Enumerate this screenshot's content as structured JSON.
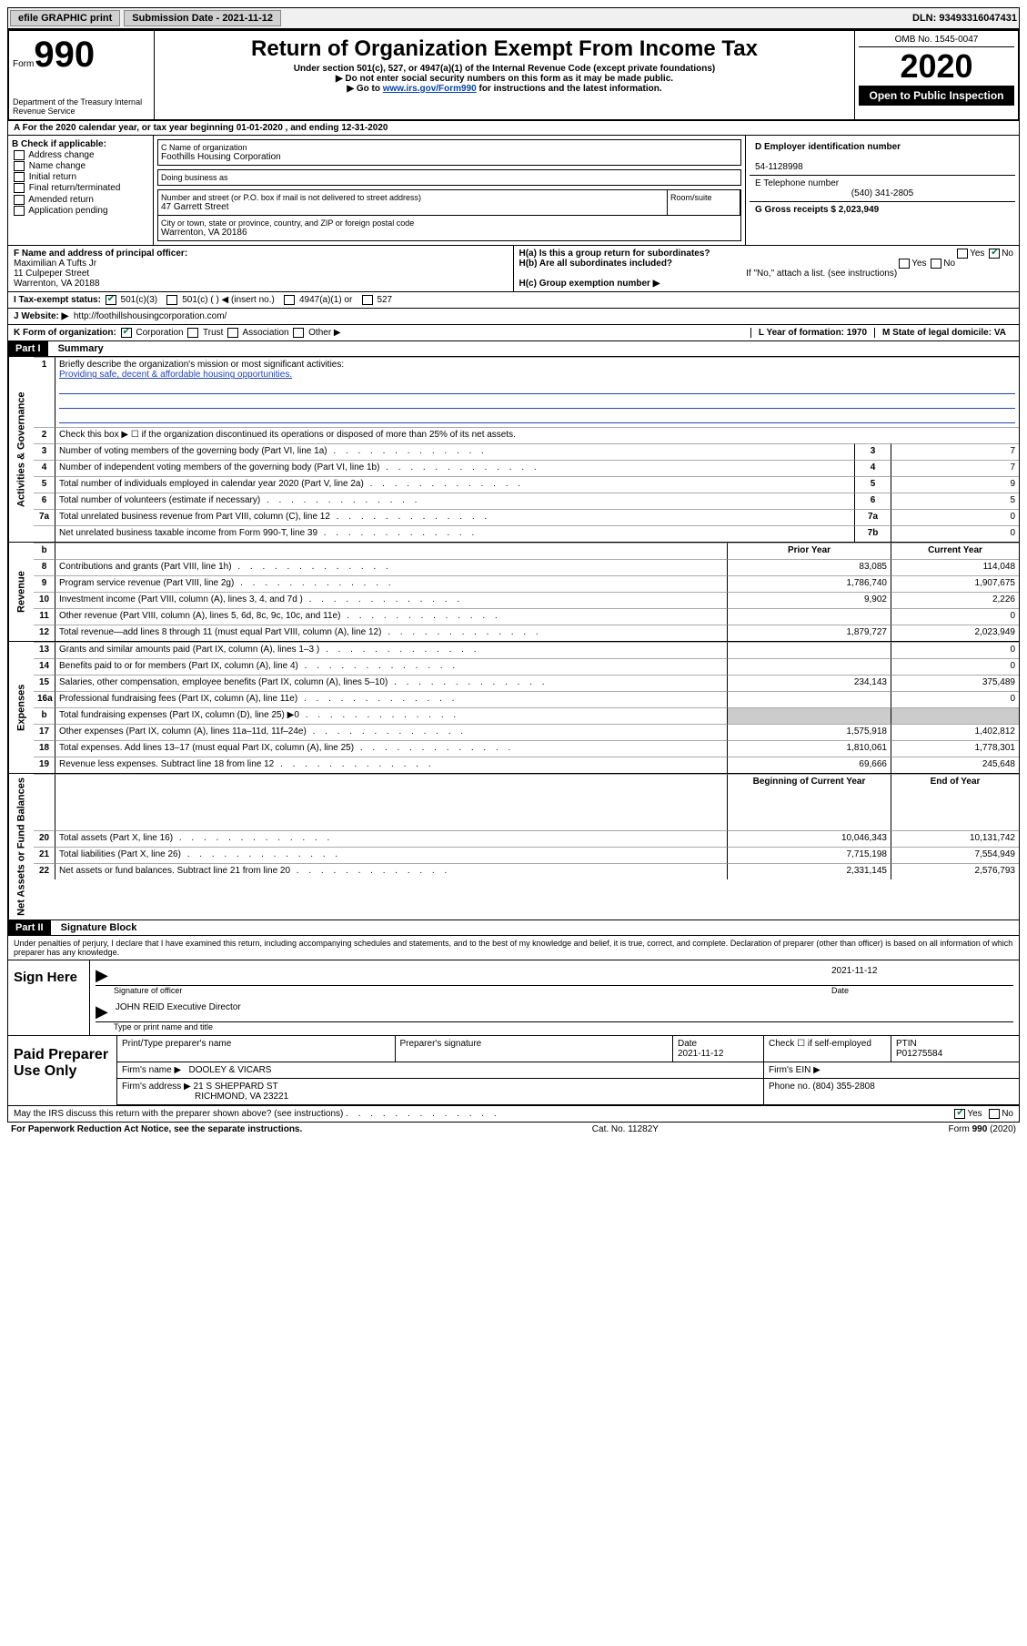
{
  "topbar": {
    "efile_label": "efile GRAPHIC print",
    "submission_label": "Submission Date - 2021-11-12",
    "dln_label": "DLN: 93493316047431"
  },
  "header": {
    "form_word": "Form",
    "form_number": "990",
    "dept": "Department of the Treasury\nInternal Revenue Service",
    "title": "Return of Organization Exempt From Income Tax",
    "subtitle1": "Under section 501(c), 527, or 4947(a)(1) of the Internal Revenue Code (except private foundations)",
    "subtitle2": "▶ Do not enter social security numbers on this form as it may be made public.",
    "subtitle3_pre": "▶ Go to ",
    "subtitle3_link": "www.irs.gov/Form990",
    "subtitle3_post": " for instructions and the latest information.",
    "omb": "OMB No. 1545-0047",
    "year": "2020",
    "inspection": "Open to Public Inspection"
  },
  "line_a": "A   For the 2020 calendar year, or tax year beginning 01-01-2020    , and ending 12-31-2020",
  "box_b": {
    "label": "B Check if applicable:",
    "items": [
      "Address change",
      "Name change",
      "Initial return",
      "Final return/terminated",
      "Amended return",
      "Application pending"
    ]
  },
  "box_c": {
    "name_label": "C Name of organization",
    "name": "Foothills Housing Corporation",
    "dba_label": "Doing business as",
    "street_label": "Number and street (or P.O. box if mail is not delivered to street address)",
    "street": "47 Garrett Street",
    "room_label": "Room/suite",
    "city_label": "City or town, state or province, country, and ZIP or foreign postal code",
    "city": "Warrenton, VA  20186"
  },
  "box_d": {
    "ein_label": "D Employer identification number",
    "ein": "54-1128998",
    "tel_label": "E Telephone number",
    "tel": "(540) 341-2805",
    "gross_label": "G Gross receipts $ 2,023,949"
  },
  "box_f": {
    "label": "F  Name and address of principal officer:",
    "name": "Maximilian A Tufts Jr",
    "addr1": "11 Culpeper Street",
    "addr2": "Warrenton, VA  20188"
  },
  "box_h": {
    "a_label": "H(a)  Is this a group return for subordinates?",
    "a_yes": "Yes",
    "a_no": "No",
    "b_label": "H(b)  Are all subordinates included?",
    "b_yes": "Yes",
    "b_no": "No",
    "b_note": "If \"No,\" attach a list. (see instructions)",
    "c_label": "H(c)  Group exemption number ▶"
  },
  "line_i": {
    "label": "I   Tax-exempt status:",
    "opts": [
      "501(c)(3)",
      "501(c) (   ) ◀ (insert no.)",
      "4947(a)(1) or",
      "527"
    ]
  },
  "line_j": {
    "label": "J   Website: ▶",
    "url": "http://foothillshousingcorporation.com/"
  },
  "line_k": {
    "label": "K Form of organization:",
    "opts": [
      "Corporation",
      "Trust",
      "Association",
      "Other ▶"
    ]
  },
  "line_l": {
    "label": "L Year of formation: 1970"
  },
  "line_m": {
    "label": "M State of legal domicile: VA"
  },
  "parts": {
    "p1_num": "Part I",
    "p1_title": "Summary",
    "p2_num": "Part II",
    "p2_title": "Signature Block"
  },
  "summary": {
    "q1_label": "Briefly describe the organization's mission or most significant activities:",
    "q1_text": "Providing safe, decent & affordable housing opportunities.",
    "q2_label": "Check this box ▶ ☐  if the organization discontinued its operations or disposed of more than 25% of its net assets.",
    "col_prior": "Prior Year",
    "col_current": "Current Year",
    "col_boy": "Beginning of Current Year",
    "col_eoy": "End of Year",
    "rows_gov": [
      {
        "n": "3",
        "t": "Number of voting members of the governing body (Part VI, line 1a)",
        "box": "3",
        "v": "7"
      },
      {
        "n": "4",
        "t": "Number of independent voting members of the governing body (Part VI, line 1b)",
        "box": "4",
        "v": "7"
      },
      {
        "n": "5",
        "t": "Total number of individuals employed in calendar year 2020 (Part V, line 2a)",
        "box": "5",
        "v": "9"
      },
      {
        "n": "6",
        "t": "Total number of volunteers (estimate if necessary)",
        "box": "6",
        "v": "5"
      },
      {
        "n": "7a",
        "t": "Total unrelated business revenue from Part VIII, column (C), line 12",
        "box": "7a",
        "v": "0"
      },
      {
        "n": "",
        "t": "Net unrelated business taxable income from Form 990-T, line 39",
        "box": "7b",
        "v": "0"
      }
    ],
    "rows_rev": [
      {
        "n": "8",
        "t": "Contributions and grants (Part VIII, line 1h)",
        "p": "83,085",
        "c": "114,048"
      },
      {
        "n": "9",
        "t": "Program service revenue (Part VIII, line 2g)",
        "p": "1,786,740",
        "c": "1,907,675"
      },
      {
        "n": "10",
        "t": "Investment income (Part VIII, column (A), lines 3, 4, and 7d )",
        "p": "9,902",
        "c": "2,226"
      },
      {
        "n": "11",
        "t": "Other revenue (Part VIII, column (A), lines 5, 6d, 8c, 9c, 10c, and 11e)",
        "p": "",
        "c": "0"
      },
      {
        "n": "12",
        "t": "Total revenue—add lines 8 through 11 (must equal Part VIII, column (A), line 12)",
        "p": "1,879,727",
        "c": "2,023,949"
      }
    ],
    "rows_exp": [
      {
        "n": "13",
        "t": "Grants and similar amounts paid (Part IX, column (A), lines 1–3 )",
        "p": "",
        "c": "0"
      },
      {
        "n": "14",
        "t": "Benefits paid to or for members (Part IX, column (A), line 4)",
        "p": "",
        "c": "0"
      },
      {
        "n": "15",
        "t": "Salaries, other compensation, employee benefits (Part IX, column (A), lines 5–10)",
        "p": "234,143",
        "c": "375,489"
      },
      {
        "n": "16a",
        "t": "Professional fundraising fees (Part IX, column (A), line 11e)",
        "p": "",
        "c": "0"
      },
      {
        "n": "b",
        "t": "Total fundraising expenses (Part IX, column (D), line 25) ▶0",
        "p": "",
        "c": "",
        "shade": true
      },
      {
        "n": "17",
        "t": "Other expenses (Part IX, column (A), lines 11a–11d, 11f–24e)",
        "p": "1,575,918",
        "c": "1,402,812"
      },
      {
        "n": "18",
        "t": "Total expenses. Add lines 13–17 (must equal Part IX, column (A), line 25)",
        "p": "1,810,061",
        "c": "1,778,301"
      },
      {
        "n": "19",
        "t": "Revenue less expenses. Subtract line 18 from line 12",
        "p": "69,666",
        "c": "245,648"
      }
    ],
    "rows_net": [
      {
        "n": "20",
        "t": "Total assets (Part X, line 16)",
        "p": "10,046,343",
        "c": "10,131,742"
      },
      {
        "n": "21",
        "t": "Total liabilities (Part X, line 26)",
        "p": "7,715,198",
        "c": "7,554,949"
      },
      {
        "n": "22",
        "t": "Net assets or fund balances. Subtract line 21 from line 20",
        "p": "2,331,145",
        "c": "2,576,793"
      }
    ],
    "vlabels": {
      "gov": "Activities & Governance",
      "rev": "Revenue",
      "exp": "Expenses",
      "net": "Net Assets or\nFund Balances"
    }
  },
  "sig": {
    "perjury": "Under penalties of perjury, I declare that I have examined this return, including accompanying schedules and statements, and to the best of my knowledge and belief, it is true, correct, and complete. Declaration of preparer (other than officer) is based on all information of which preparer has any knowledge.",
    "sign_here": "Sign Here",
    "sig_officer": "Signature of officer",
    "date": "2021-11-12",
    "date_label": "Date",
    "name_title": "JOHN REID  Executive Director",
    "name_title_label": "Type or print name and title"
  },
  "preparer": {
    "label": "Paid Preparer Use Only",
    "h_name": "Print/Type preparer's name",
    "h_sig": "Preparer's signature",
    "h_date": "Date",
    "date_val": "2021-11-12",
    "h_check": "Check ☐ if self-employed",
    "h_ptin": "PTIN",
    "ptin": "P01275584",
    "firm_name_label": "Firm's name    ▶",
    "firm_name": "DOOLEY & VICARS",
    "firm_ein_label": "Firm's EIN ▶",
    "firm_addr_label": "Firm's address ▶",
    "firm_addr1": "21 S SHEPPARD ST",
    "firm_addr2": "RICHMOND, VA  23221",
    "phone_label": "Phone no. (804) 355-2808"
  },
  "discuss": {
    "text": "May the IRS discuss this return with the preparer shown above? (see instructions)",
    "yes": "Yes",
    "no": "No"
  },
  "footer": {
    "left": "For Paperwork Reduction Act Notice, see the separate instructions.",
    "mid": "Cat. No. 11282Y",
    "right": "Form 990 (2020)"
  }
}
